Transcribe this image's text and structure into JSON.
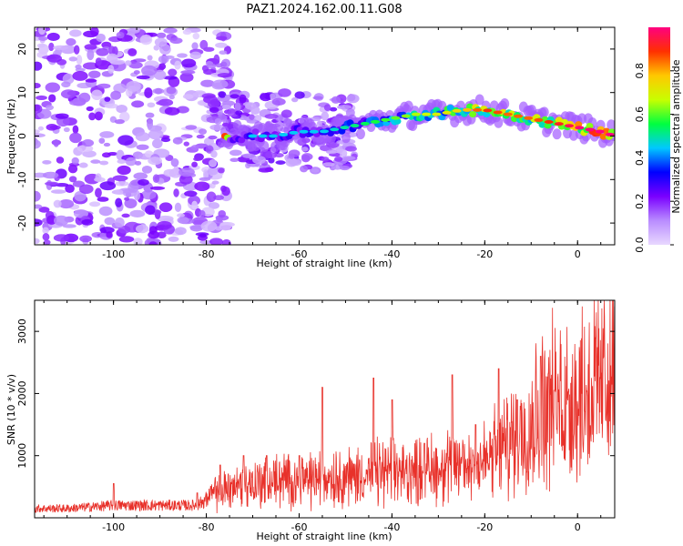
{
  "title": "PAZ1.2024.162.00.11.G08",
  "chart_data": [
    {
      "type": "heatmap",
      "xlabel": "Height of straight line (km)",
      "ylabel": "Frequency (Hz)",
      "xlim": [
        -117,
        8
      ],
      "ylim": [
        -25,
        25
      ],
      "xticks": [
        -100,
        -80,
        -60,
        -40,
        -20,
        0
      ],
      "yticks": [
        -20,
        -10,
        0,
        10,
        20
      ],
      "colorbar": {
        "label": "Normalized spectral amplitude",
        "range": [
          0,
          1
        ],
        "ticks": [
          0.0,
          0.2,
          0.4,
          0.6,
          0.8
        ],
        "colormap": [
          "#e8d8ff",
          "#b98cff",
          "#7a00ff",
          "#0000ff",
          "#00c8ff",
          "#00ff40",
          "#c8ff00",
          "#ffc800",
          "#ff3000",
          "#ff0080"
        ]
      },
      "ridge": {
        "x": [
          -75,
          -70,
          -65,
          -60,
          -55,
          -50,
          -45,
          -40,
          -35,
          -30,
          -25,
          -20,
          -15,
          -10,
          -5,
          0,
          5,
          8
        ],
        "frequency": [
          0,
          0,
          0,
          1,
          1,
          2,
          3,
          4,
          5,
          5,
          6,
          6,
          5,
          4,
          3,
          2,
          1,
          0
        ],
        "amplitude": [
          0.25,
          0.3,
          0.3,
          0.3,
          0.3,
          0.35,
          0.4,
          0.45,
          0.5,
          0.55,
          0.6,
          0.75,
          0.7,
          0.7,
          0.75,
          0.85,
          0.9,
          0.9
        ]
      }
    },
    {
      "type": "line",
      "xlabel": "Height of straight line (km)",
      "ylabel": "SNR (10 * v/v)",
      "xlim": [
        -117,
        8
      ],
      "ylim": [
        0,
        3500
      ],
      "xticks": [
        -100,
        -80,
        -60,
        -40,
        -20,
        0
      ],
      "yticks": [
        1000,
        2000,
        3000
      ],
      "color": "#e8312a",
      "envelope": {
        "x": [
          -117,
          -110,
          -100,
          -90,
          -82,
          -78,
          -75,
          -70,
          -65,
          -60,
          -55,
          -50,
          -45,
          -40,
          -35,
          -30,
          -25,
          -20,
          -15,
          -12,
          -10,
          -8,
          -5,
          0,
          5,
          8
        ],
        "snr": [
          150,
          150,
          200,
          200,
          200,
          400,
          500,
          550,
          600,
          600,
          650,
          650,
          700,
          750,
          750,
          800,
          850,
          900,
          1200,
          1400,
          1500,
          1800,
          1850,
          1950,
          2200,
          2400
        ]
      },
      "spikes": [
        {
          "x": -100,
          "snr": 550
        },
        {
          "x": -82,
          "snr": 400
        },
        {
          "x": -77,
          "snr": 850
        },
        {
          "x": -72,
          "snr": 1000
        },
        {
          "x": -67,
          "snr": 1000
        },
        {
          "x": -60,
          "snr": 1000
        },
        {
          "x": -55,
          "snr": 2100
        },
        {
          "x": -44,
          "snr": 2250
        },
        {
          "x": -40,
          "snr": 1900
        },
        {
          "x": -33,
          "snr": 1200
        },
        {
          "x": -27,
          "snr": 2300
        },
        {
          "x": -22,
          "snr": 1500
        },
        {
          "x": -17,
          "snr": 2400
        },
        {
          "x": -13,
          "snr": 1900
        },
        {
          "x": -8,
          "snr": 2600
        },
        {
          "x": -5,
          "snr": 2050
        },
        {
          "x": 8,
          "snr": 3400
        }
      ]
    }
  ]
}
